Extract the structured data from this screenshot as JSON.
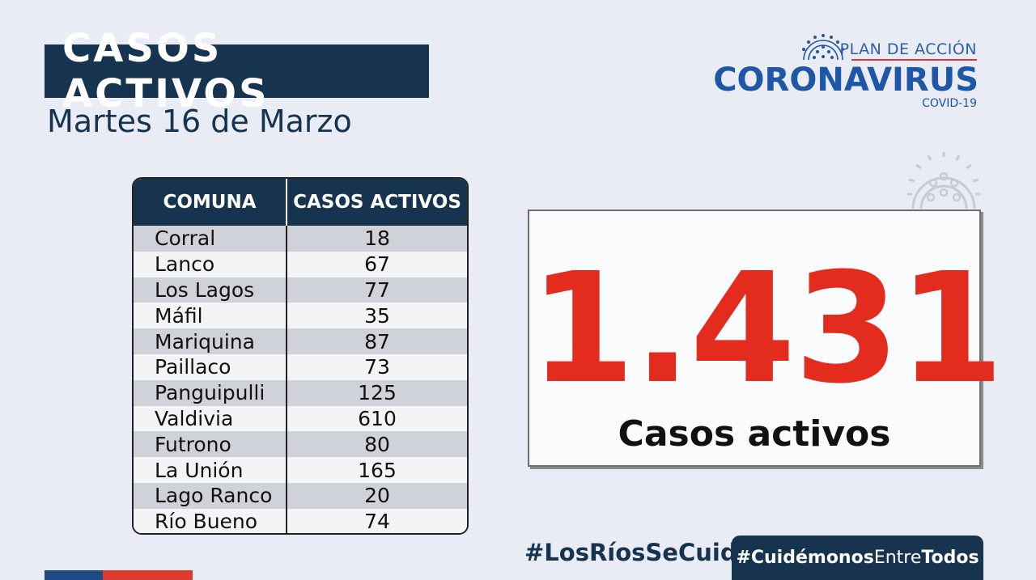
{
  "header": {
    "title": "CASOS ACTIVOS",
    "date": "Martes 16 de Marzo"
  },
  "logo": {
    "plan": "PLAN DE ACCIÓN",
    "name": "CORONAVIRUS",
    "sub": "COVID-19"
  },
  "table": {
    "headers": [
      "COMUNA",
      "CASOS ACTIVOS"
    ],
    "rows": [
      {
        "comuna": "Corral",
        "casos": "18"
      },
      {
        "comuna": "Lanco",
        "casos": "67"
      },
      {
        "comuna": "Los Lagos",
        "casos": "77"
      },
      {
        "comuna": "Máfil",
        "casos": "35"
      },
      {
        "comuna": "Mariquina",
        "casos": "87"
      },
      {
        "comuna": "Paillaco",
        "casos": "73"
      },
      {
        "comuna": "Panguipulli",
        "casos": "125"
      },
      {
        "comuna": "Valdivia",
        "casos": "610"
      },
      {
        "comuna": "Futrono",
        "casos": "80"
      },
      {
        "comuna": "La Unión",
        "casos": "165"
      },
      {
        "comuna": "Lago Ranco",
        "casos": "20"
      },
      {
        "comuna": "Río Bueno",
        "casos": "74"
      }
    ]
  },
  "total": {
    "value": "1.431",
    "label": "Casos activos"
  },
  "hashtags": {
    "first": "#LosRíosSeCuida",
    "second_a": "#Cuidémonos",
    "second_b": "Entre",
    "second_c": "Todos"
  },
  "colors": {
    "navy": "#16344f",
    "red": "#e32c1e",
    "blue": "#1e56a8",
    "background": "#e9ebf5"
  },
  "icons": [
    "virus-icon"
  ]
}
